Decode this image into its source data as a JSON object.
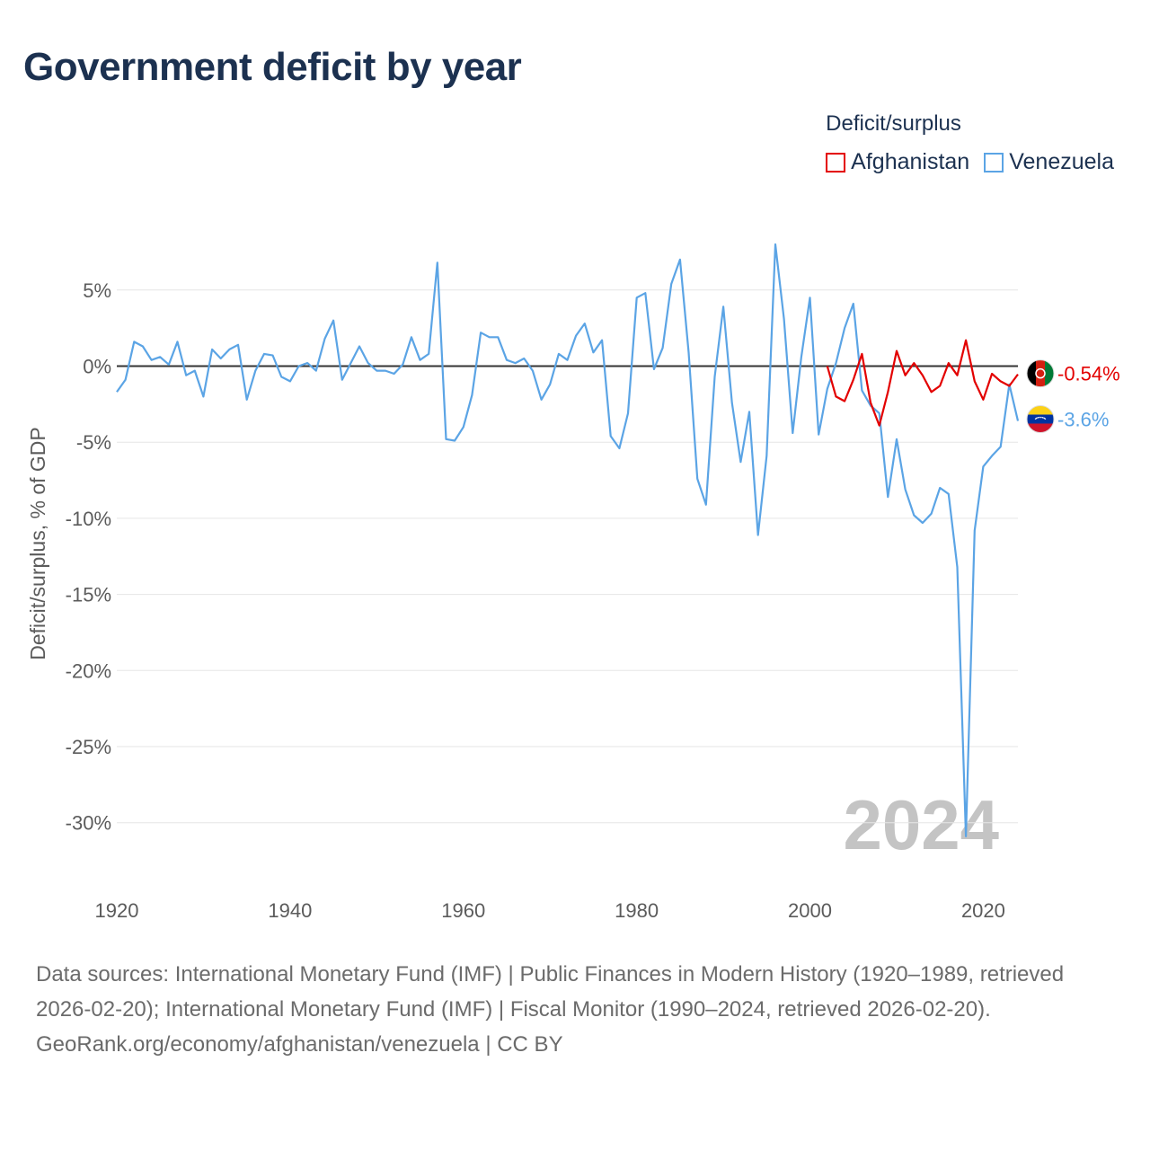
{
  "title": "Government deficit by year",
  "legend": {
    "title": "Deficit/surplus",
    "items": [
      {
        "name": "Afghanistan",
        "color": "#e30000"
      },
      {
        "name": "Venezuela",
        "color": "#5ba4e5"
      }
    ]
  },
  "chart_data": {
    "type": "line",
    "title": "Government deficit by year",
    "xlabel": "",
    "ylabel": "Deficit/surplus, % of GDP",
    "xlim": [
      1920,
      2024
    ],
    "ylim": [
      -33,
      8.5
    ],
    "xticks": [
      1920,
      1940,
      1960,
      1980,
      2000,
      2020
    ],
    "yticks": [
      5,
      0,
      -5,
      -10,
      -15,
      -20,
      -25,
      -30
    ],
    "ytick_labels": [
      "5%",
      "0%",
      "-5%",
      "-10%",
      "-15%",
      "-20%",
      "-25%",
      "-30%"
    ],
    "watermark_year": "2024",
    "series": [
      {
        "name": "Venezuela",
        "color": "#5ba4e5",
        "end_label": "-3.6%",
        "flag": "venezuela-flag",
        "x": [
          1920,
          1921,
          1922,
          1923,
          1924,
          1925,
          1926,
          1927,
          1928,
          1929,
          1930,
          1931,
          1932,
          1933,
          1934,
          1935,
          1936,
          1937,
          1938,
          1939,
          1940,
          1941,
          1942,
          1943,
          1944,
          1945,
          1946,
          1947,
          1948,
          1949,
          1950,
          1951,
          1952,
          1953,
          1954,
          1955,
          1956,
          1957,
          1958,
          1959,
          1960,
          1961,
          1962,
          1963,
          1964,
          1965,
          1966,
          1967,
          1968,
          1969,
          1970,
          1971,
          1972,
          1973,
          1974,
          1975,
          1976,
          1977,
          1978,
          1979,
          1980,
          1981,
          1982,
          1983,
          1984,
          1985,
          1986,
          1987,
          1988,
          1989,
          1990,
          1991,
          1992,
          1993,
          1994,
          1995,
          1996,
          1997,
          1998,
          1999,
          2000,
          2001,
          2002,
          2003,
          2004,
          2005,
          2006,
          2007,
          2008,
          2009,
          2010,
          2011,
          2012,
          2013,
          2014,
          2015,
          2016,
          2017,
          2018,
          2019,
          2020,
          2021,
          2022,
          2023,
          2024
        ],
        "values": [
          -1.7,
          -0.9,
          1.6,
          1.3,
          0.4,
          0.6,
          0.1,
          1.6,
          -0.6,
          -0.3,
          -2.0,
          1.1,
          0.5,
          1.1,
          1.4,
          -2.2,
          -0.3,
          0.8,
          0.7,
          -0.7,
          -1.0,
          0.0,
          0.2,
          -0.3,
          1.8,
          3.0,
          -0.9,
          0.2,
          1.3,
          0.2,
          -0.3,
          -0.3,
          -0.5,
          0.1,
          1.9,
          0.4,
          0.8,
          6.8,
          -4.8,
          -4.9,
          -4.0,
          -1.9,
          2.2,
          1.9,
          1.9,
          0.4,
          0.2,
          0.5,
          -0.3,
          -2.2,
          -1.2,
          0.8,
          0.4,
          2.0,
          2.8,
          0.9,
          1.7,
          -4.6,
          -5.4,
          -3.1,
          4.5,
          4.8,
          -0.2,
          1.2,
          5.4,
          7.0,
          0.9,
          -7.4,
          -9.1,
          -0.7,
          3.9,
          -2.4,
          -6.3,
          -3.0,
          -11.1,
          -5.9,
          8.0,
          3.1,
          -4.4,
          0.6,
          4.5,
          -4.5,
          -1.5,
          0.2,
          2.5,
          4.1,
          -1.6,
          -2.6,
          -3.1,
          -8.6,
          -4.8,
          -8.1,
          -9.8,
          -10.3,
          -9.7,
          -8.0,
          -8.4,
          -13.2,
          -30.9,
          -10.8,
          -6.6,
          -5.9,
          -5.3,
          -1.2,
          -3.6
        ]
      },
      {
        "name": "Afghanistan",
        "color": "#e30000",
        "end_label": "-0.54%",
        "flag": "afghanistan-flag",
        "x": [
          2002,
          2003,
          2004,
          2005,
          2006,
          2007,
          2008,
          2009,
          2010,
          2011,
          2012,
          2013,
          2014,
          2015,
          2016,
          2017,
          2018,
          2019,
          2020,
          2021,
          2022,
          2023,
          2024
        ],
        "values": [
          0.0,
          -2.0,
          -2.3,
          -0.9,
          0.8,
          -2.4,
          -3.9,
          -1.7,
          1.0,
          -0.6,
          0.2,
          -0.6,
          -1.7,
          -1.3,
          0.2,
          -0.6,
          1.7,
          -1.0,
          -2.2,
          -0.5,
          -1.0,
          -1.3,
          -0.54
        ]
      }
    ]
  },
  "footer": {
    "sources": "Data sources: International Monetary Fund (IMF) | Public Finances in Modern History (1920–1989, retrieved 2026-02-20); International Monetary Fund (IMF) | Fiscal Monitor (1990–2024, retrieved 2026-02-20).",
    "credit": "GeoRank.org/economy/afghanistan/venezuela | CC BY"
  }
}
